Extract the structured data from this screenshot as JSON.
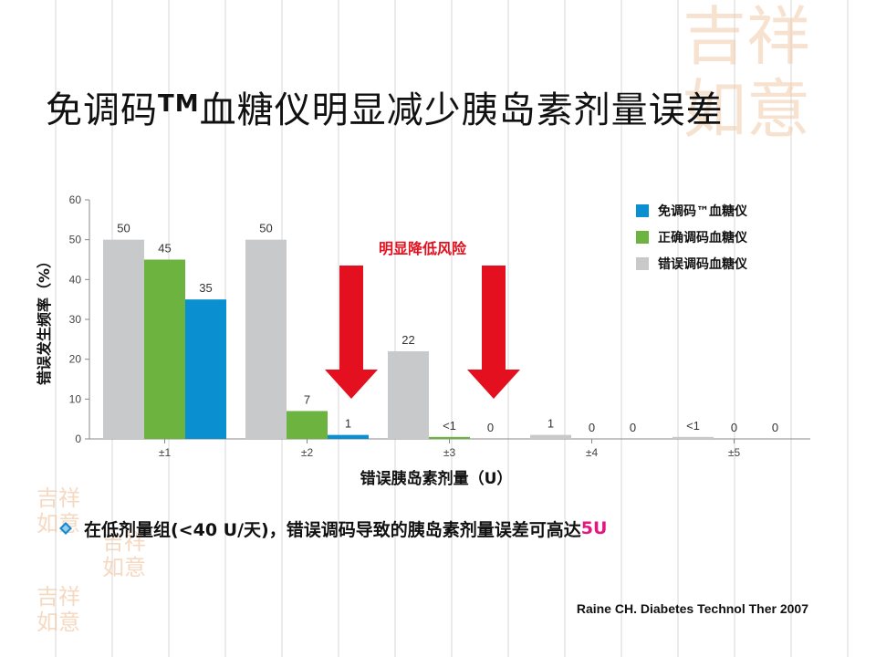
{
  "title": {
    "main": "免调码",
    "tm": "TM",
    "rest": "血糖仪明显减少胰岛素剂量误差"
  },
  "watermark": {
    "glyphs": "吉祥如意"
  },
  "chart_data": {
    "type": "bar",
    "categories": [
      "±1",
      "±2",
      "±3",
      "±4",
      "±5"
    ],
    "series": [
      {
        "name": "错误调码血糖仪",
        "color": "#c8c9cb",
        "values": [
          50,
          50,
          22,
          1,
          0.5
        ],
        "labels": [
          "50",
          "50",
          "22",
          "1",
          "<1"
        ]
      },
      {
        "name": "正确调码血糖仪",
        "color": "#6db33f",
        "values": [
          45,
          7,
          0.5,
          0,
          0
        ],
        "labels": [
          "45",
          "7",
          "<1",
          "0",
          "0"
        ]
      },
      {
        "name": "免调码™血糖仪",
        "color": "#0a8fd0",
        "values": [
          35,
          1,
          0,
          0,
          0
        ],
        "labels": [
          "35",
          "1",
          "0",
          "0",
          "0"
        ]
      }
    ],
    "legend": {
      "position": "top-right",
      "items": [
        {
          "label": "免调码™血糖仪",
          "color": "#0a8fd0"
        },
        {
          "label": "正确调码血糖仪",
          "color": "#6db33f"
        },
        {
          "label": "错误调码血糖仪",
          "color": "#c8c9cb"
        }
      ]
    },
    "ylim": [
      0,
      60
    ],
    "yticks": [
      0,
      10,
      20,
      30,
      40,
      50,
      60
    ],
    "ylabel": "错误发生频率（%）",
    "xlabel": "错误胰岛素剂量（U）",
    "annotation": {
      "text": "明显降低风险",
      "color": "#e4101f",
      "arrows": 2
    },
    "grid": false
  },
  "bullet": {
    "text": "在低剂量组(<40 U/天)，错误调码导致的胰岛素剂量误差可高达",
    "highlight": "5U",
    "highlight_color": "#e3177f"
  },
  "citation": "Raine CH. Diabetes Technol Ther 2007"
}
